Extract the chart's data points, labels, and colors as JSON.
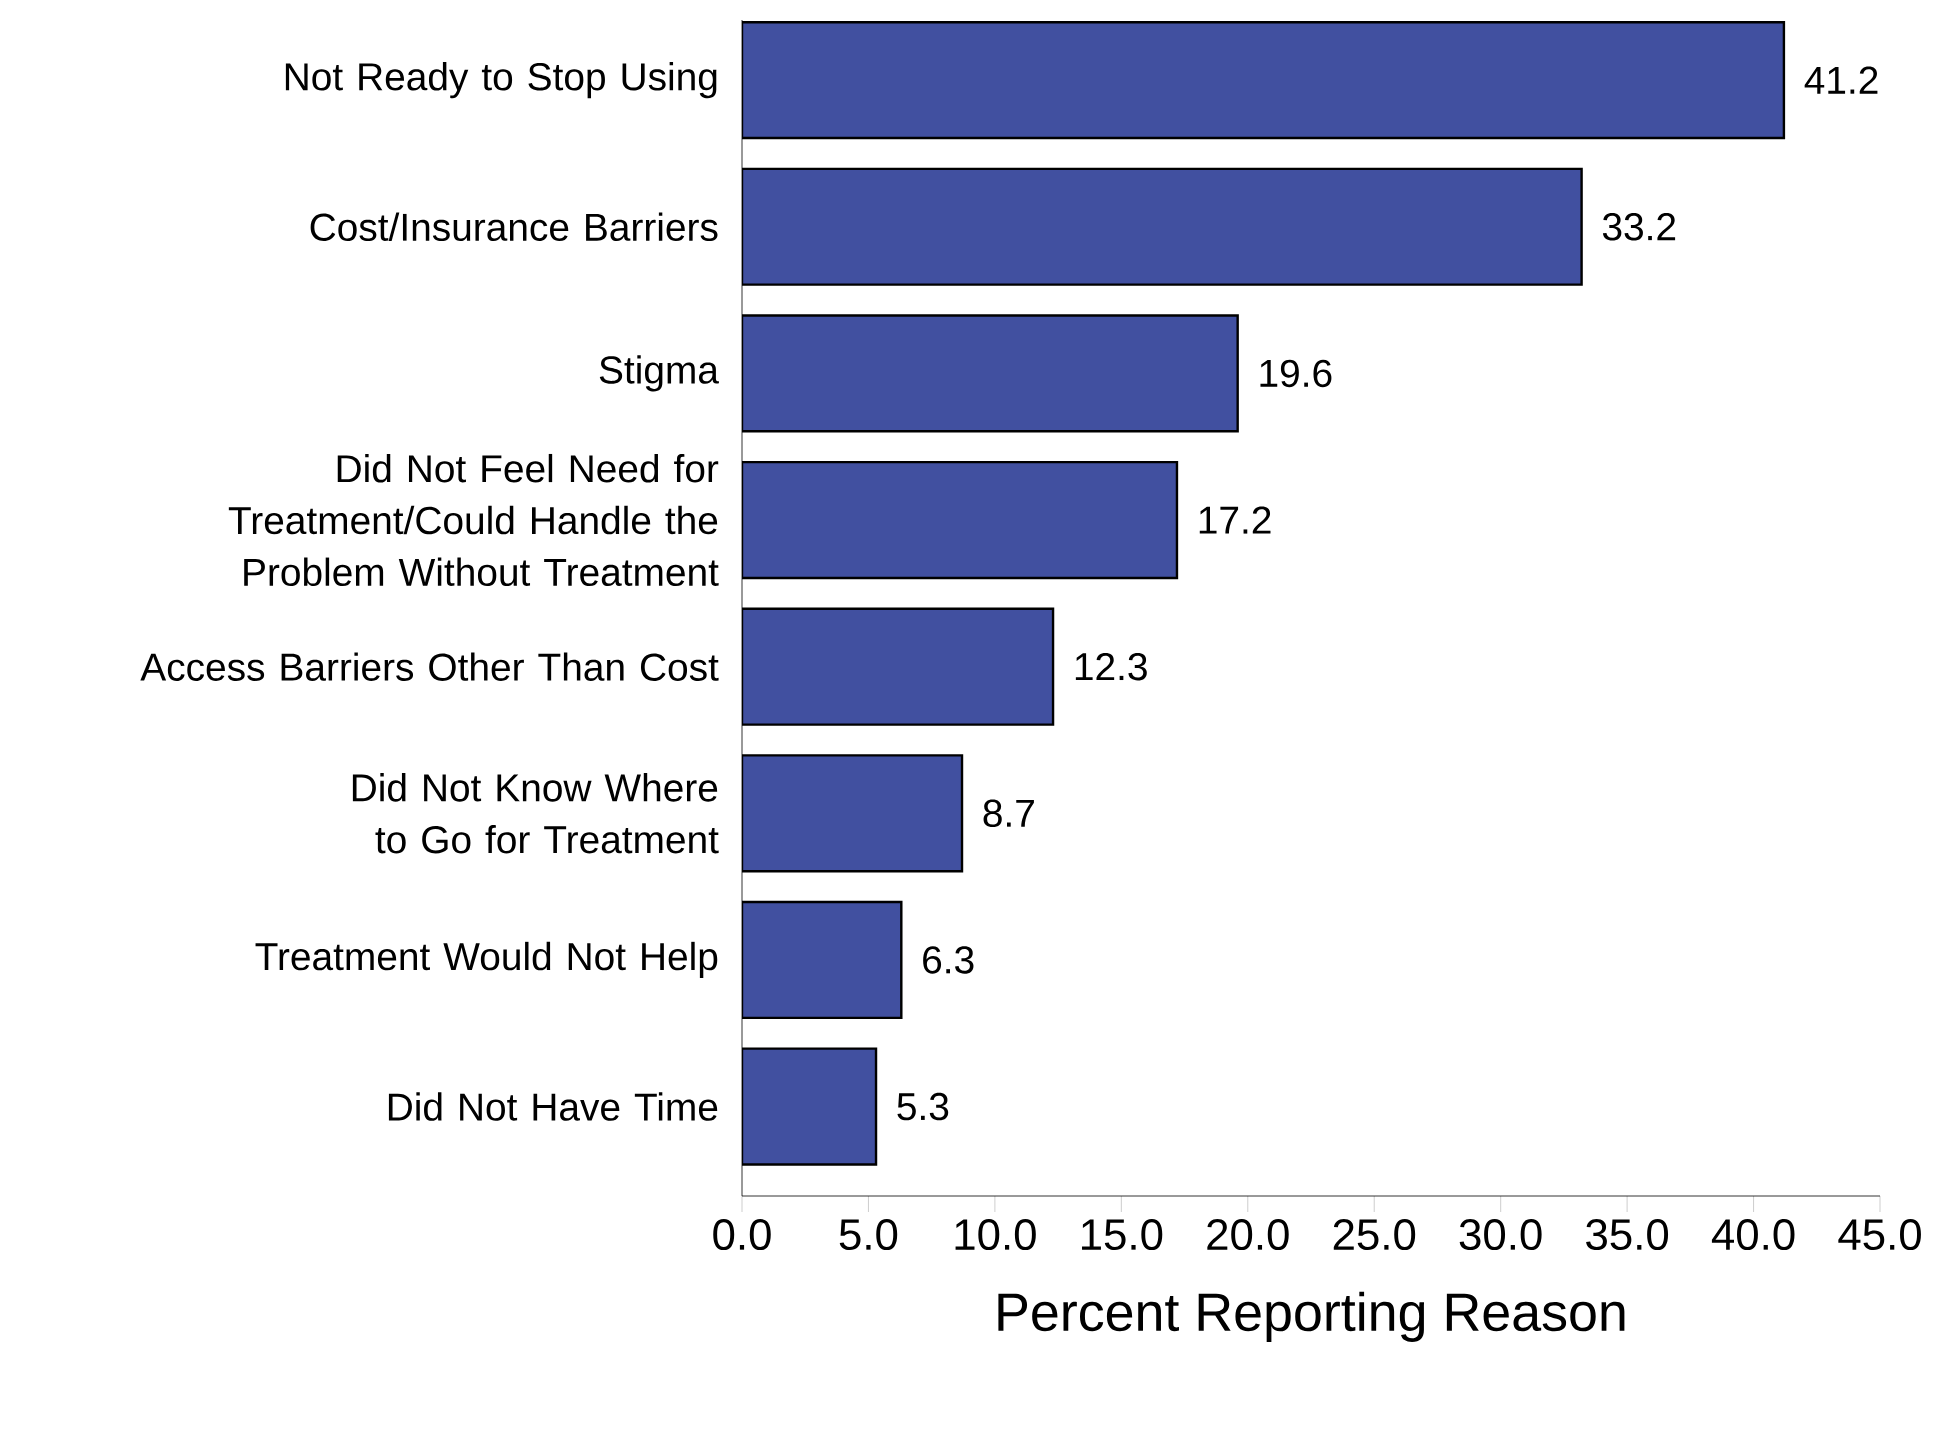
{
  "chart_data": {
    "type": "bar",
    "orientation": "horizontal",
    "xlabel": "Percent Reporting Reason",
    "categories": [
      "Not Ready to Stop Using",
      "Cost/Insurance Barriers",
      "Stigma",
      "Did Not Feel Need for Treatment/Could Handle the Problem Without Treatment",
      "Access Barriers Other Than Cost",
      "Did Not Know Where to Go for Treatment",
      "Treatment Would Not Help",
      "Did Not Have Time"
    ],
    "values": [
      41.2,
      33.2,
      19.6,
      17.2,
      12.3,
      8.7,
      6.3,
      5.3
    ],
    "color": "#4150a0",
    "xlim": [
      0,
      45
    ],
    "xticks": [
      {
        "value": 0,
        "label": "0.0"
      },
      {
        "value": 5,
        "label": "5.0"
      },
      {
        "value": 10,
        "label": "10.0"
      },
      {
        "value": 15,
        "label": "15.0"
      },
      {
        "value": 20,
        "label": "20.0"
      },
      {
        "value": 25,
        "label": "25.0"
      },
      {
        "value": 30,
        "label": "30.0"
      },
      {
        "value": 35,
        "label": "35.0"
      },
      {
        "value": 40,
        "label": "40.0"
      },
      {
        "value": 45,
        "label": "45.0"
      }
    ],
    "data_labels": true,
    "grid": false
  }
}
